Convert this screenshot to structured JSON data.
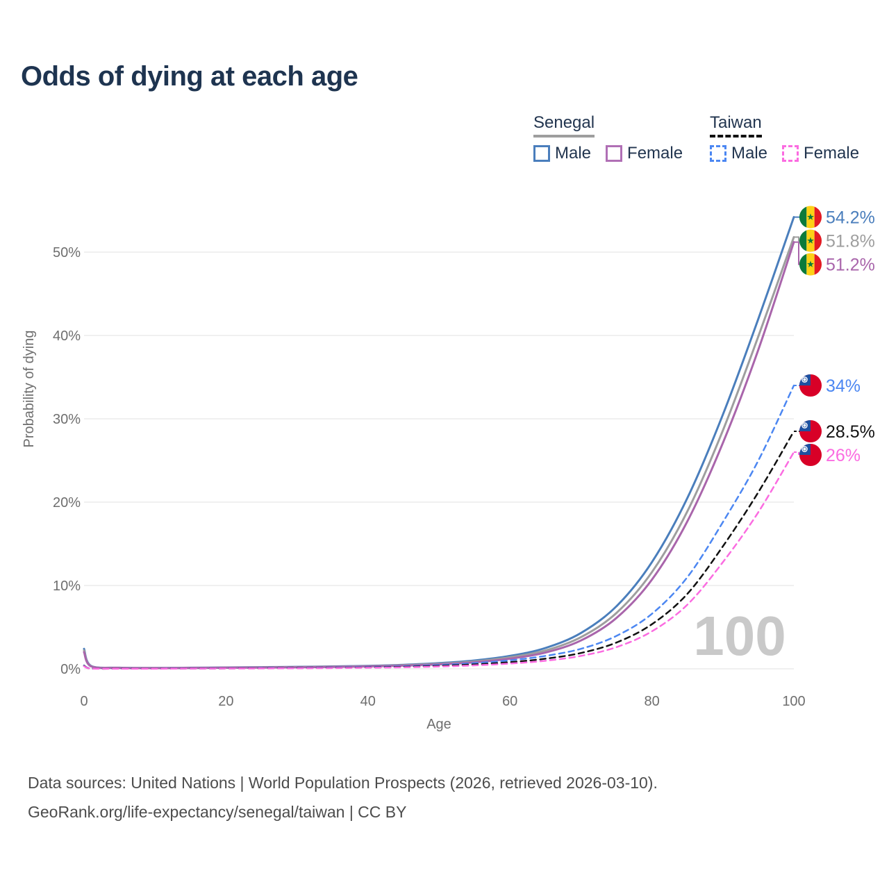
{
  "header": {
    "title": "Odds of dying at each age"
  },
  "legend": {
    "groups": [
      {
        "country": "Senegal",
        "line_style": "solid",
        "underline_color": "#9e9e9e",
        "items": [
          {
            "label": "Male",
            "color": "#4a7ebc"
          },
          {
            "label": "Female",
            "color": "#b06fb5"
          }
        ]
      },
      {
        "country": "Taiwan",
        "line_style": "dashed",
        "underline_color": "#111111",
        "items": [
          {
            "label": "Male",
            "color": "#4c87f2"
          },
          {
            "label": "Female",
            "color": "#fb6ce1"
          }
        ]
      }
    ]
  },
  "chart_data": {
    "type": "line",
    "title": "Odds of dying at each age",
    "xlabel": "Age",
    "ylabel": "Probability of dying",
    "xlim": [
      0,
      100
    ],
    "ylim": [
      0,
      55
    ],
    "grid": "horizontal",
    "legend_position": "top-right",
    "watermark": "100",
    "x_ticks": [
      {
        "value": 0,
        "label": "0"
      },
      {
        "value": 20,
        "label": "20"
      },
      {
        "value": 40,
        "label": "40"
      },
      {
        "value": 60,
        "label": "60"
      },
      {
        "value": 80,
        "label": "80"
      },
      {
        "value": 100,
        "label": "100"
      }
    ],
    "y_ticks": [
      {
        "value": 0,
        "label": "0%"
      },
      {
        "value": 10,
        "label": "10%"
      },
      {
        "value": 20,
        "label": "20%"
      },
      {
        "value": 30,
        "label": "30%"
      },
      {
        "value": 40,
        "label": "40%"
      },
      {
        "value": 50,
        "label": "50%"
      }
    ],
    "ages": [
      0,
      1,
      5,
      10,
      15,
      20,
      25,
      30,
      35,
      40,
      45,
      50,
      55,
      60,
      65,
      70,
      75,
      80,
      85,
      90,
      95,
      100
    ],
    "series": [
      {
        "name": "Senegal Male",
        "country": "Senegal",
        "sex": "Male",
        "color": "#4a7ebc",
        "dashed": false,
        "flag": "senegal",
        "end_label": "54.2%",
        "values": [
          2.4,
          0.35,
          0.13,
          0.1,
          0.13,
          0.17,
          0.2,
          0.24,
          0.29,
          0.36,
          0.48,
          0.68,
          1.0,
          1.55,
          2.5,
          4.3,
          7.5,
          12.8,
          20.5,
          30.5,
          42.0,
          54.2
        ]
      },
      {
        "name": "Senegal",
        "country": "Senegal",
        "sex": "Both",
        "color": "#9e9e9e",
        "dashed": false,
        "flag": "senegal",
        "end_label": "51.8%",
        "values": [
          2.2,
          0.32,
          0.12,
          0.09,
          0.11,
          0.15,
          0.18,
          0.21,
          0.26,
          0.32,
          0.43,
          0.6,
          0.88,
          1.38,
          2.2,
          3.8,
          6.7,
          11.6,
          18.9,
          28.6,
          39.9,
          51.8
        ]
      },
      {
        "name": "Senegal Female",
        "country": "Senegal",
        "sex": "Female",
        "color": "#a965ab",
        "dashed": false,
        "flag": "senegal",
        "end_label": "51.2%",
        "values": [
          2.0,
          0.29,
          0.11,
          0.08,
          0.1,
          0.13,
          0.16,
          0.19,
          0.23,
          0.29,
          0.38,
          0.53,
          0.78,
          1.22,
          1.95,
          3.4,
          6.1,
          10.7,
          17.7,
          27.1,
          38.3,
          51.2
        ]
      },
      {
        "name": "Taiwan Male",
        "country": "Taiwan",
        "sex": "Male",
        "color": "#4c87f2",
        "dashed": true,
        "flag": "taiwan",
        "end_label": "34%",
        "values": [
          0.4,
          0.04,
          0.02,
          0.02,
          0.05,
          0.07,
          0.09,
          0.12,
          0.16,
          0.22,
          0.31,
          0.46,
          0.68,
          1.02,
          1.55,
          2.4,
          3.95,
          6.6,
          11.0,
          17.6,
          25.0,
          34.0
        ]
      },
      {
        "name": "Taiwan",
        "country": "Taiwan",
        "sex": "Both",
        "color": "#111111",
        "dashed": true,
        "flag": "taiwan",
        "end_label": "28.5%",
        "values": [
          0.36,
          0.03,
          0.02,
          0.02,
          0.04,
          0.05,
          0.07,
          0.09,
          0.12,
          0.17,
          0.24,
          0.36,
          0.53,
          0.8,
          1.22,
          1.9,
          3.15,
          5.35,
          9.0,
          14.7,
          21.2,
          28.5
        ]
      },
      {
        "name": "Taiwan Female",
        "country": "Taiwan",
        "sex": "Female",
        "color": "#fb6ce1",
        "dashed": true,
        "flag": "taiwan",
        "end_label": "26%",
        "values": [
          0.32,
          0.03,
          0.01,
          0.01,
          0.03,
          0.04,
          0.05,
          0.07,
          0.09,
          0.13,
          0.18,
          0.28,
          0.42,
          0.63,
          0.97,
          1.55,
          2.6,
          4.5,
          7.7,
          12.8,
          18.8,
          26.0
        ]
      }
    ]
  },
  "footer": {
    "line1": "Data sources: United Nations | World Population Prospects (2026, retrieved 2026-03-10).",
    "line2": "GeoRank.org/life-expectancy/senegal/taiwan | CC BY"
  }
}
